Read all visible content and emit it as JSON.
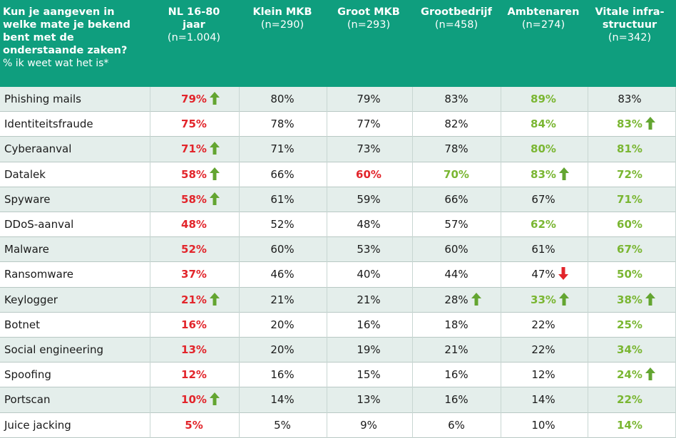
{
  "header": {
    "question": "Kun je aangeven in welke mate je bekend bent met de onderstaande zaken?",
    "question_sub": "% ik weet wat het is*",
    "columns": [
      {
        "name": "NL 16-80\njaar",
        "n": "(n=1.004)"
      },
      {
        "name": "Klein MKB",
        "n": "(n=290)"
      },
      {
        "name": "Groot MKB",
        "n": "(n=293)"
      },
      {
        "name": "Grootbedrijf",
        "n": "(n=458)"
      },
      {
        "name": "Ambtenaren",
        "n": "(n=274)"
      },
      {
        "name": "Vitale infra-\nstructuur",
        "n": "(n=342)"
      }
    ]
  },
  "colors": {
    "header_bg": "#0f9e7e",
    "red": "#e2252b",
    "green": "#7ab632",
    "arrow_up": "#63a531",
    "arrow_down": "#e2252b",
    "alt_row": "#e4eeeb"
  },
  "chart_data": {
    "type": "table",
    "title": "Kun je aangeven in welke mate je bekend bent met de onderstaande zaken?",
    "subtitle": "% ik weet wat het is*",
    "rows": [
      {
        "label": "Phishing mails",
        "cells": [
          {
            "v": "79%",
            "c": "red",
            "a": "up"
          },
          {
            "v": "80%",
            "c": "normal"
          },
          {
            "v": "79%",
            "c": "normal"
          },
          {
            "v": "83%",
            "c": "normal"
          },
          {
            "v": "89%",
            "c": "green"
          },
          {
            "v": "83%",
            "c": "normal"
          }
        ]
      },
      {
        "label": "Identiteitsfraude",
        "cells": [
          {
            "v": "75%",
            "c": "red"
          },
          {
            "v": "78%",
            "c": "normal"
          },
          {
            "v": "77%",
            "c": "normal"
          },
          {
            "v": "82%",
            "c": "normal"
          },
          {
            "v": "84%",
            "c": "green"
          },
          {
            "v": "83%",
            "c": "green",
            "a": "up"
          }
        ]
      },
      {
        "label": "Cyberaanval",
        "cells": [
          {
            "v": "71%",
            "c": "red",
            "a": "up"
          },
          {
            "v": "71%",
            "c": "normal"
          },
          {
            "v": "73%",
            "c": "normal"
          },
          {
            "v": "78%",
            "c": "normal"
          },
          {
            "v": "80%",
            "c": "green"
          },
          {
            "v": "81%",
            "c": "green"
          }
        ]
      },
      {
        "label": "Datalek",
        "cells": [
          {
            "v": "58%",
            "c": "red",
            "a": "up"
          },
          {
            "v": "66%",
            "c": "normal"
          },
          {
            "v": "60%",
            "c": "red"
          },
          {
            "v": "70%",
            "c": "green"
          },
          {
            "v": "83%",
            "c": "green",
            "a": "up"
          },
          {
            "v": "72%",
            "c": "green"
          }
        ]
      },
      {
        "label": "Spyware",
        "cells": [
          {
            "v": "58%",
            "c": "red",
            "a": "up"
          },
          {
            "v": "61%",
            "c": "normal"
          },
          {
            "v": "59%",
            "c": "normal"
          },
          {
            "v": "66%",
            "c": "normal"
          },
          {
            "v": "67%",
            "c": "normal"
          },
          {
            "v": "71%",
            "c": "green"
          }
        ]
      },
      {
        "label": "DDoS-aanval",
        "cells": [
          {
            "v": "48%",
            "c": "red"
          },
          {
            "v": "52%",
            "c": "normal"
          },
          {
            "v": "48%",
            "c": "normal"
          },
          {
            "v": "57%",
            "c": "normal"
          },
          {
            "v": "62%",
            "c": "green"
          },
          {
            "v": "60%",
            "c": "green"
          }
        ]
      },
      {
        "label": "Malware",
        "cells": [
          {
            "v": "52%",
            "c": "red"
          },
          {
            "v": "60%",
            "c": "normal"
          },
          {
            "v": "53%",
            "c": "normal"
          },
          {
            "v": "60%",
            "c": "normal"
          },
          {
            "v": "61%",
            "c": "normal"
          },
          {
            "v": "67%",
            "c": "green"
          }
        ]
      },
      {
        "label": "Ransomware",
        "cells": [
          {
            "v": "37%",
            "c": "red"
          },
          {
            "v": "46%",
            "c": "normal"
          },
          {
            "v": "40%",
            "c": "normal"
          },
          {
            "v": "44%",
            "c": "normal"
          },
          {
            "v": "47%",
            "c": "normal",
            "a": "down"
          },
          {
            "v": "50%",
            "c": "green"
          }
        ]
      },
      {
        "label": "Keylogger",
        "cells": [
          {
            "v": "21%",
            "c": "red",
            "a": "up"
          },
          {
            "v": "21%",
            "c": "normal"
          },
          {
            "v": "21%",
            "c": "normal"
          },
          {
            "v": "28%",
            "c": "normal",
            "a": "up"
          },
          {
            "v": "33%",
            "c": "green",
            "a": "up"
          },
          {
            "v": "38%",
            "c": "green",
            "a": "up"
          }
        ]
      },
      {
        "label": "Botnet",
        "cells": [
          {
            "v": "16%",
            "c": "red"
          },
          {
            "v": "20%",
            "c": "normal"
          },
          {
            "v": "16%",
            "c": "normal"
          },
          {
            "v": "18%",
            "c": "normal"
          },
          {
            "v": "22%",
            "c": "normal"
          },
          {
            "v": "25%",
            "c": "green"
          }
        ]
      },
      {
        "label": "Social engineering",
        "cells": [
          {
            "v": "13%",
            "c": "red"
          },
          {
            "v": "20%",
            "c": "normal"
          },
          {
            "v": "19%",
            "c": "normal"
          },
          {
            "v": "21%",
            "c": "normal"
          },
          {
            "v": "22%",
            "c": "normal"
          },
          {
            "v": "34%",
            "c": "green"
          }
        ]
      },
      {
        "label": "Spoofing",
        "cells": [
          {
            "v": "12%",
            "c": "red"
          },
          {
            "v": "16%",
            "c": "normal"
          },
          {
            "v": "15%",
            "c": "normal"
          },
          {
            "v": "16%",
            "c": "normal"
          },
          {
            "v": "12%",
            "c": "normal"
          },
          {
            "v": "24%",
            "c": "green",
            "a": "up"
          }
        ]
      },
      {
        "label": "Portscan",
        "cells": [
          {
            "v": "10%",
            "c": "red",
            "a": "up"
          },
          {
            "v": "14%",
            "c": "normal"
          },
          {
            "v": "13%",
            "c": "normal"
          },
          {
            "v": "16%",
            "c": "normal"
          },
          {
            "v": "14%",
            "c": "normal"
          },
          {
            "v": "22%",
            "c": "green"
          }
        ]
      },
      {
        "label": "Juice jacking",
        "cells": [
          {
            "v": "5%",
            "c": "red"
          },
          {
            "v": "5%",
            "c": "normal"
          },
          {
            "v": "9%",
            "c": "normal"
          },
          {
            "v": "6%",
            "c": "normal"
          },
          {
            "v": "10%",
            "c": "normal"
          },
          {
            "v": "14%",
            "c": "green"
          }
        ]
      }
    ]
  }
}
